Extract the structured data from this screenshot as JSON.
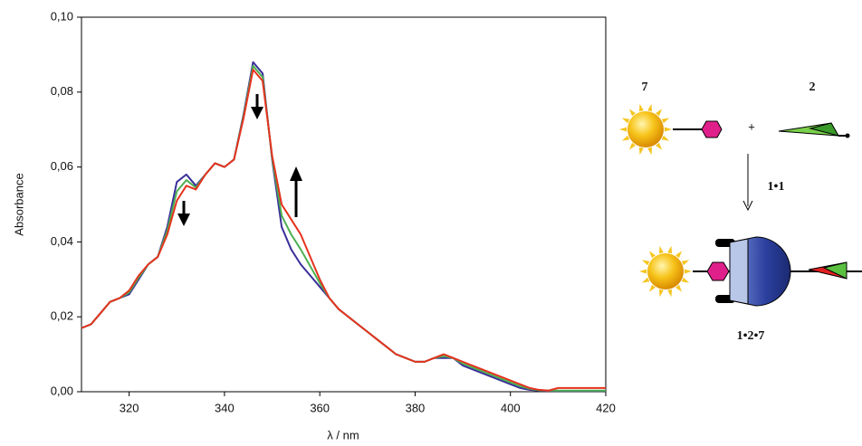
{
  "chart_data": {
    "type": "line",
    "y_label": "Absorbance",
    "x_label": "λ / nm",
    "x": [
      310,
      312,
      314,
      316,
      318,
      320,
      322,
      324,
      326,
      328,
      330,
      332,
      334,
      336,
      338,
      340,
      342,
      344,
      346,
      348,
      350,
      352,
      354,
      356,
      358,
      360,
      362,
      364,
      366,
      368,
      370,
      372,
      374,
      376,
      378,
      380,
      382,
      384,
      386,
      388,
      390,
      392,
      394,
      396,
      398,
      400,
      402,
      404,
      406,
      408,
      410,
      412,
      414,
      416,
      418,
      420
    ],
    "series": [
      {
        "color": "#3a2f9a",
        "values": [
          0.017,
          0.018,
          0.021,
          0.024,
          0.025,
          0.026,
          0.03,
          0.034,
          0.036,
          0.044,
          0.056,
          0.058,
          0.055,
          0.058,
          0.061,
          0.06,
          0.062,
          0.074,
          0.088,
          0.085,
          0.062,
          0.044,
          0.038,
          0.034,
          0.031,
          0.028,
          0.025,
          0.022,
          0.02,
          0.018,
          0.016,
          0.014,
          0.012,
          0.01,
          0.009,
          0.008,
          0.008,
          0.009,
          0.009,
          0.009,
          0.007,
          0.006,
          0.005,
          0.004,
          0.003,
          0.002,
          0.001,
          0.0005,
          0.0003,
          0.0002,
          0.0002,
          0.0002,
          0.0002,
          0.0002,
          0.0002,
          0.0002
        ]
      },
      {
        "color": "#4caf50",
        "values": [
          0.017,
          0.018,
          0.021,
          0.024,
          0.025,
          0.0265,
          0.0305,
          0.034,
          0.036,
          0.043,
          0.0535,
          0.0565,
          0.0545,
          0.058,
          0.061,
          0.06,
          0.062,
          0.0735,
          0.087,
          0.084,
          0.0625,
          0.047,
          0.042,
          0.038,
          0.0335,
          0.029,
          0.025,
          0.022,
          0.02,
          0.018,
          0.016,
          0.014,
          0.012,
          0.01,
          0.009,
          0.008,
          0.008,
          0.009,
          0.0095,
          0.009,
          0.0075,
          0.0065,
          0.0055,
          0.0045,
          0.0035,
          0.0025,
          0.0015,
          0.0008,
          0.0004,
          0.0003,
          0.0003,
          0.0003,
          0.0003,
          0.0003,
          0.0003,
          0.0003
        ]
      },
      {
        "color": "#e5321e",
        "values": [
          0.017,
          0.018,
          0.021,
          0.024,
          0.025,
          0.027,
          0.031,
          0.034,
          0.036,
          0.042,
          0.051,
          0.055,
          0.054,
          0.058,
          0.061,
          0.06,
          0.062,
          0.073,
          0.086,
          0.083,
          0.063,
          0.05,
          0.046,
          0.042,
          0.036,
          0.03,
          0.025,
          0.022,
          0.02,
          0.018,
          0.016,
          0.014,
          0.012,
          0.01,
          0.009,
          0.008,
          0.008,
          0.009,
          0.01,
          0.009,
          0.008,
          0.007,
          0.006,
          0.005,
          0.004,
          0.003,
          0.002,
          0.001,
          0.0005,
          0.0003,
          0.001,
          0.001,
          0.001,
          0.001,
          0.001,
          0.001
        ]
      }
    ],
    "xlim": [
      310,
      420
    ],
    "xticks": [
      320,
      340,
      360,
      380,
      400,
      420
    ],
    "ylim": [
      0,
      0.1
    ],
    "yticks": [
      {
        "value": 0,
        "label": "0,00"
      },
      {
        "value": 0.02,
        "label": "0,02"
      },
      {
        "value": 0.04,
        "label": "0,04"
      },
      {
        "value": 0.06,
        "label": "0,06"
      },
      {
        "value": 0.08,
        "label": "0,08"
      },
      {
        "value": 0.1,
        "label": "0,10"
      }
    ],
    "annotations": [
      "7",
      "2",
      "+",
      "1•1",
      "1•2•7"
    ]
  }
}
